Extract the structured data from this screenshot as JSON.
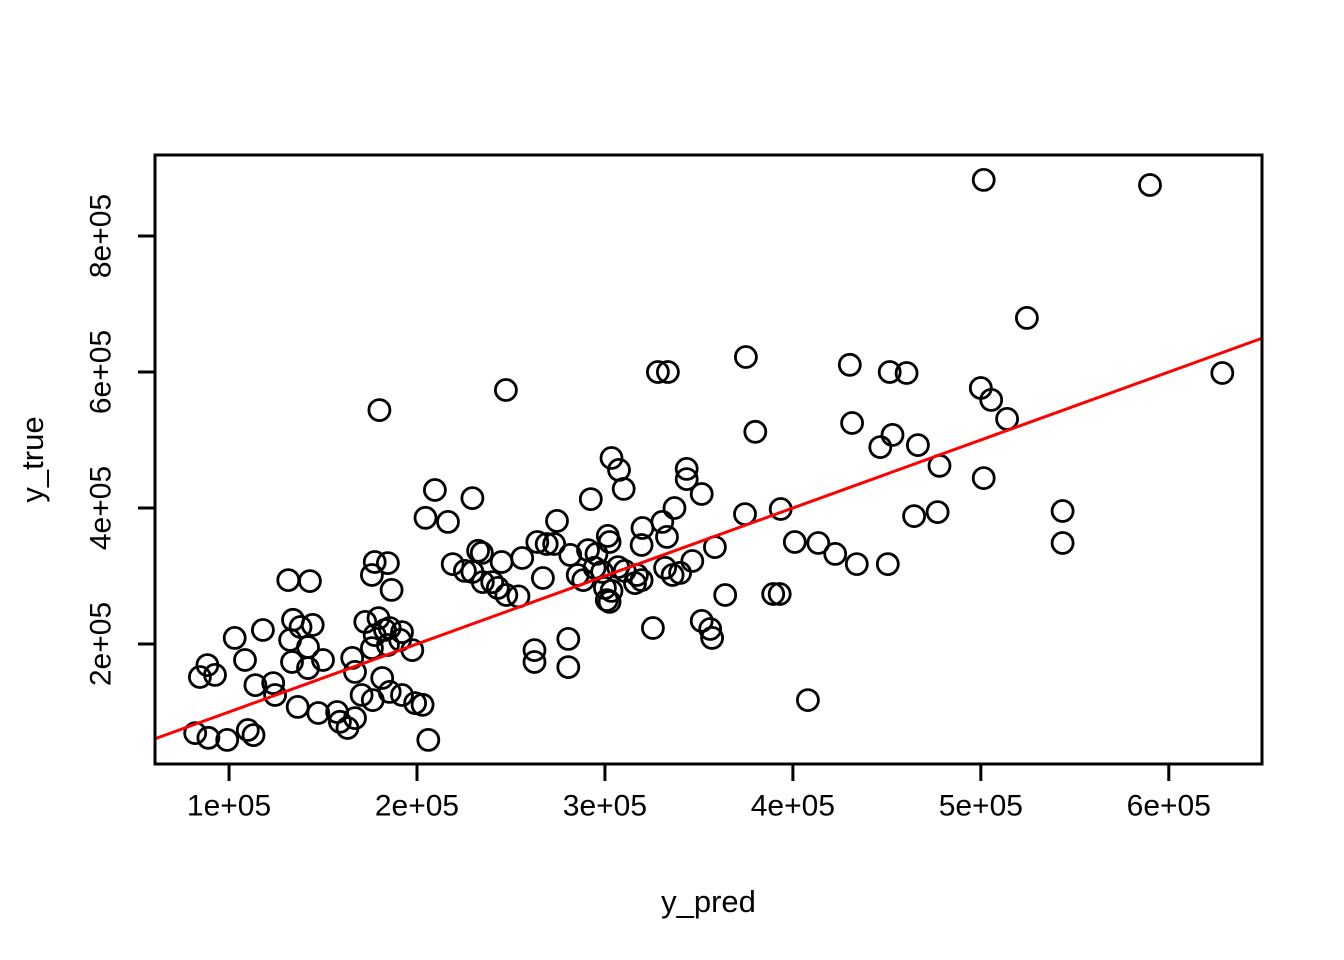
{
  "chart_data": {
    "type": "scatter",
    "title": "",
    "xlabel": "y_pred",
    "ylabel": "y_true",
    "grid": false,
    "legend_position": "none",
    "xlim": [
      60600,
      649600
    ],
    "ylim": [
      23500,
      919100
    ],
    "x_tick_values": [
      100000,
      200000,
      300000,
      400000,
      500000,
      600000
    ],
    "x_tick_labels": [
      "1e+05",
      "2e+05",
      "3e+05",
      "4e+05",
      "5e+05",
      "6e+05"
    ],
    "y_tick_values": [
      200000,
      400000,
      600000,
      800000
    ],
    "y_tick_labels": [
      "2e+05",
      "4e+05",
      "6e+05",
      "8e+05"
    ],
    "marker": "open-circle",
    "point_color": "#000000",
    "background_color": "#ffffff",
    "identity_line": {
      "slope": 1,
      "intercept": 0,
      "color": "#ff0000"
    },
    "points": [
      [
        180000,
        544000
      ],
      [
        247300,
        573500
      ],
      [
        328200,
        600000
      ],
      [
        333500,
        600000
      ],
      [
        375000,
        622000
      ],
      [
        430300,
        610500
      ],
      [
        303500,
        473500
      ],
      [
        380000,
        512000
      ],
      [
        431500,
        525000
      ],
      [
        446500,
        489500
      ],
      [
        501500,
        882500
      ],
      [
        590000,
        875000
      ],
      [
        524500,
        679500
      ],
      [
        628500,
        598500
      ],
      [
        451500,
        600000
      ],
      [
        460500,
        598500
      ],
      [
        500000,
        576500
      ],
      [
        505500,
        559000
      ],
      [
        514000,
        531000
      ],
      [
        453000,
        507500
      ],
      [
        466500,
        492500
      ],
      [
        478000,
        462000
      ],
      [
        209500,
        426500
      ],
      [
        229500,
        414500
      ],
      [
        204500,
        385500
      ],
      [
        216500,
        379500
      ],
      [
        131500,
        294000
      ],
      [
        143000,
        292500
      ],
      [
        177500,
        320500
      ],
      [
        184500,
        319000
      ],
      [
        176000,
        301500
      ],
      [
        186500,
        279500
      ],
      [
        103000,
        209000
      ],
      [
        118000,
        220500
      ],
      [
        134000,
        235500
      ],
      [
        132500,
        206000
      ],
      [
        138000,
        225000
      ],
      [
        144500,
        228000
      ],
      [
        142000,
        195500
      ],
      [
        133500,
        173500
      ],
      [
        142000,
        164500
      ],
      [
        150000,
        176500
      ],
      [
        165500,
        179500
      ],
      [
        167000,
        159000
      ],
      [
        88500,
        169000
      ],
      [
        92500,
        154500
      ],
      [
        84500,
        151500
      ],
      [
        108500,
        176500
      ],
      [
        114000,
        139500
      ],
      [
        123500,
        142500
      ],
      [
        124500,
        125000
      ],
      [
        136500,
        107500
      ],
      [
        147500,
        98500
      ],
      [
        157500,
        100000
      ],
      [
        159000,
        85500
      ],
      [
        163000,
        76500
      ],
      [
        167000,
        91000
      ],
      [
        170500,
        125000
      ],
      [
        176500,
        117500
      ],
      [
        181500,
        150000
      ],
      [
        185500,
        129500
      ],
      [
        192000,
        125000
      ],
      [
        199000,
        113000
      ],
      [
        203000,
        110500
      ],
      [
        82000,
        69000
      ],
      [
        89000,
        62000
      ],
      [
        99000,
        59000
      ],
      [
        110000,
        73500
      ],
      [
        113000,
        66000
      ],
      [
        206000,
        59000
      ],
      [
        172500,
        232500
      ],
      [
        179500,
        238000
      ],
      [
        183000,
        220500
      ],
      [
        177500,
        213000
      ],
      [
        185500,
        223500
      ],
      [
        191000,
        206000
      ],
      [
        176000,
        194000
      ],
      [
        184500,
        198500
      ],
      [
        192000,
        217500
      ],
      [
        197500,
        191000
      ],
      [
        219000,
        317500
      ],
      [
        225500,
        307500
      ],
      [
        229500,
        306000
      ],
      [
        235000,
        291000
      ],
      [
        240000,
        291000
      ],
      [
        243000,
        282500
      ],
      [
        247500,
        272000
      ],
      [
        254000,
        270000
      ],
      [
        232500,
        337000
      ],
      [
        234500,
        334000
      ],
      [
        245000,
        320500
      ],
      [
        307500,
        456000
      ],
      [
        343500,
        457500
      ],
      [
        343500,
        442500
      ],
      [
        310000,
        428000
      ],
      [
        351500,
        420500
      ],
      [
        292500,
        413000
      ],
      [
        337000,
        400000
      ],
      [
        374500,
        391000
      ],
      [
        393500,
        398500
      ],
      [
        274500,
        381000
      ],
      [
        330500,
        379500
      ],
      [
        320000,
        370500
      ],
      [
        333000,
        357500
      ],
      [
        264000,
        350000
      ],
      [
        269000,
        347000
      ],
      [
        273000,
        347000
      ],
      [
        301500,
        359000
      ],
      [
        302500,
        350000
      ],
      [
        319500,
        345500
      ],
      [
        281500,
        331000
      ],
      [
        291000,
        338000
      ],
      [
        295500,
        332500
      ],
      [
        358500,
        342500
      ],
      [
        401000,
        350000
      ],
      [
        413500,
        348500
      ],
      [
        256000,
        326500
      ],
      [
        422500,
        332500
      ],
      [
        434000,
        317500
      ],
      [
        450500,
        317500
      ],
      [
        294500,
        312000
      ],
      [
        298500,
        306000
      ],
      [
        307000,
        313000
      ],
      [
        310500,
        307500
      ],
      [
        267000,
        297000
      ],
      [
        285500,
        301500
      ],
      [
        288500,
        294000
      ],
      [
        317000,
        301500
      ],
      [
        319500,
        294000
      ],
      [
        316000,
        289500
      ],
      [
        332000,
        312000
      ],
      [
        336000,
        301500
      ],
      [
        340000,
        304500
      ],
      [
        346500,
        322000
      ],
      [
        300000,
        282500
      ],
      [
        303500,
        278000
      ],
      [
        301000,
        264500
      ],
      [
        302500,
        262000
      ],
      [
        364000,
        272000
      ],
      [
        389500,
        273500
      ],
      [
        393000,
        273500
      ],
      [
        325500,
        223500
      ],
      [
        351500,
        234000
      ],
      [
        356000,
        222000
      ],
      [
        357000,
        209000
      ],
      [
        262500,
        191000
      ],
      [
        262500,
        173500
      ],
      [
        280500,
        207500
      ],
      [
        280500,
        166000
      ],
      [
        408000,
        117500
      ],
      [
        501500,
        444000
      ],
      [
        464500,
        388000
      ],
      [
        477000,
        394000
      ],
      [
        543500,
        395500
      ],
      [
        543500,
        348500
      ]
    ]
  }
}
